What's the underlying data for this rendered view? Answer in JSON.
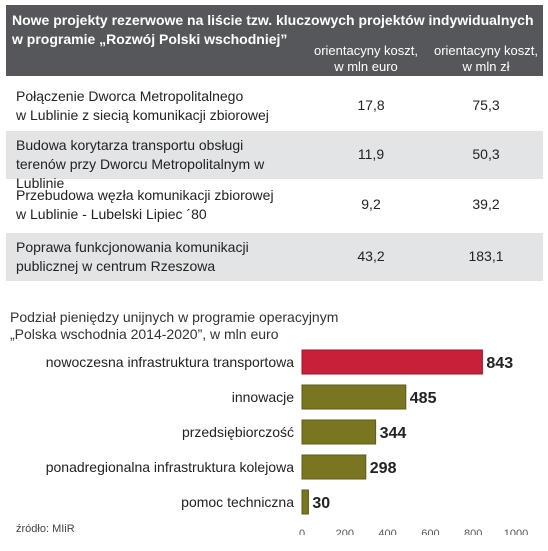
{
  "table": {
    "title_line1": "Nowe projekty rezerwowe na liście tzw. kluczowych projektów indywidualnych",
    "title_line2": "w programie „Rozwój Polski wschodniej”",
    "col1_line1": "orientacyny koszt,",
    "col1_line2": "w mln euro",
    "col2_line1": "orientacyny koszt,",
    "col2_line2": "w mln zł",
    "rows": [
      {
        "line1": "Połączenie Dworca Metropolitalnego",
        "line2": "w Lublinie z siecią komunikacji zbiorowej",
        "eur": "17,8",
        "pln": "75,3"
      },
      {
        "line1": "Budowa korytarza transportu obsługi",
        "line2": "terenów przy Dworcu Metropolitalnym w Lublinie",
        "eur": "11,9",
        "pln": "50,3"
      },
      {
        "line1": "Przebudowa węzła komunikacji zbiorowej",
        "line2": " w Lublinie - Lubelski Lipiec ´80",
        "eur": "9,2",
        "pln": "39,2"
      },
      {
        "line1": "Poprawa funkcjonowania komunikacji",
        "line2": "publicznej w centrum Rzeszowa",
        "eur": "43,2",
        "pln": "183,1"
      }
    ]
  },
  "chart_data": {
    "type": "bar",
    "orientation": "horizontal",
    "title_line1": "Podział pieniędzy unijnych w programie operacyjnym",
    "title_line2": "„Polska wschodnia 2014-2020”, w mln euro",
    "categories": [
      "nowoczesna infrastruktura transportowa",
      "innowacje",
      "przedsiębiorczość",
      "ponadregionalna infrastruktura kolejowa",
      "pomoc techniczna"
    ],
    "values": [
      843,
      485,
      344,
      298,
      30
    ],
    "value_labels": [
      "843",
      "485",
      "344",
      "298",
      "30"
    ],
    "xlim": [
      0,
      1000
    ],
    "xticks": [
      0,
      200,
      400,
      600,
      800,
      1000
    ],
    "xtick_labels": [
      "0",
      "200",
      "400",
      "600",
      "800",
      "1000"
    ],
    "grid": false,
    "colors": {
      "highlight": "#c9203a",
      "bar": "#7a7520",
      "bar_edge": "#5d5a17"
    }
  },
  "source": "źródło: MIiR"
}
